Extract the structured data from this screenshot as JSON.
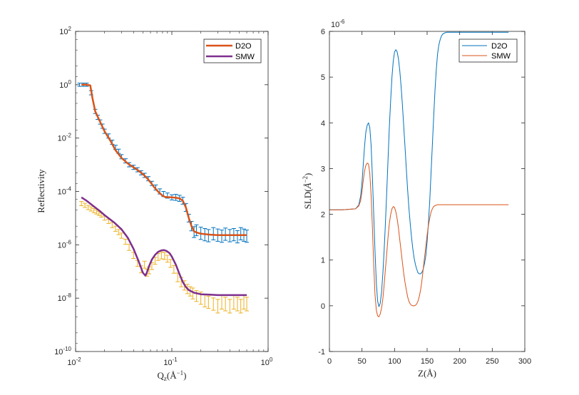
{
  "figure": {
    "window_title": ""
  },
  "chart_data": [
    {
      "type": "scatter",
      "title": "",
      "xlabel": "Q_z(Å^-1)",
      "xlabel_main": "Q",
      "xlabel_sub": "z",
      "xlabel_unit": "(Å",
      "xlabel_sup": "−1",
      "xlabel_close": ")",
      "ylabel": "Reflectivity",
      "xscale": "log",
      "yscale": "log",
      "xlim": [
        0.01,
        1
      ],
      "ylim": [
        1e-10,
        100
      ],
      "xtick_labels": [
        "10",
        "10",
        "10"
      ],
      "xtick_exponents": [
        "-2",
        "-1",
        "0"
      ],
      "ytick_labels": [
        "10",
        "10",
        "10",
        "10",
        "10",
        "10",
        "10"
      ],
      "ytick_exponents": [
        "2",
        "0",
        "-2",
        "-4",
        "-6",
        "-8",
        "-10"
      ],
      "legend_position": "top-right",
      "legend": [
        "D2O",
        "SMW"
      ],
      "colors": {
        "d2o_fit": "#D95319",
        "smw_fit": "#7E2F8E",
        "d2o_data": "#0072BD",
        "smw_data": "#EDB120"
      },
      "series": [
        {
          "name": "D2O",
          "kind": "fit",
          "x": [
            0.0115,
            0.013,
            0.0142,
            0.015,
            0.016,
            0.018,
            0.02,
            0.023,
            0.026,
            0.03,
            0.035,
            0.04,
            0.045,
            0.05,
            0.055,
            0.06,
            0.065,
            0.07,
            0.075,
            0.08,
            0.085,
            0.09,
            0.1,
            0.11,
            0.12,
            0.13,
            0.14,
            0.15,
            0.16,
            0.17,
            0.18,
            0.2,
            0.22,
            0.25,
            0.3,
            0.35,
            0.4,
            0.45,
            0.5,
            0.55,
            0.6
          ],
          "y": [
            1.0,
            1.0,
            0.95,
            0.3,
            0.1,
            0.04,
            0.018,
            0.008,
            0.0035,
            0.0018,
            0.0011,
            0.0008,
            0.0006,
            0.00045,
            0.00032,
            0.00022,
            0.00015,
            0.00011,
            8.5e-05,
            7e-05,
            6.2e-05,
            6.1e-05,
            6e-05,
            5.8e-05,
            5.5e-05,
            4.5e-05,
            2.5e-05,
            1e-05,
            5e-06,
            3.2e-06,
            2.9e-06,
            2.6e-06,
            2.5e-06,
            2.4e-06,
            2.3e-06,
            2.3e-06,
            2.3e-06,
            2.3e-06,
            2.3e-06,
            2.3e-06,
            2.3e-06
          ]
        },
        {
          "name": "SMW",
          "kind": "fit",
          "x": [
            0.0115,
            0.013,
            0.015,
            0.018,
            0.02,
            0.025,
            0.03,
            0.035,
            0.04,
            0.045,
            0.05,
            0.053,
            0.055,
            0.058,
            0.062,
            0.067,
            0.072,
            0.078,
            0.083,
            0.088,
            0.095,
            0.1,
            0.11,
            0.12,
            0.13,
            0.14,
            0.15,
            0.17,
            0.2,
            0.25,
            0.3,
            0.4,
            0.5,
            0.6
          ],
          "y": [
            6e-05,
            4.5e-05,
            3e-05,
            1.8e-05,
            1.3e-05,
            7e-06,
            3.8e-06,
            1.8e-06,
            7e-07,
            2.5e-07,
            9e-08,
            7e-08,
            9e-08,
            1.6e-07,
            2.8e-07,
            4.2e-07,
            5.4e-07,
            6.2e-07,
            6.3e-07,
            5.9e-07,
            4.8e-07,
            3.6e-07,
            1.8e-07,
            8e-08,
            4e-08,
            2.6e-08,
            2e-08,
            1.6e-08,
            1.4e-08,
            1.35e-08,
            1.3e-08,
            1.3e-08,
            1.3e-08,
            1.3e-08
          ]
        },
        {
          "name": "D2O data",
          "kind": "errorbar",
          "x": [
            0.011,
            0.012,
            0.013,
            0.0145,
            0.016,
            0.017,
            0.018,
            0.019,
            0.02,
            0.022,
            0.024,
            0.026,
            0.028,
            0.03,
            0.033,
            0.036,
            0.04,
            0.044,
            0.048,
            0.052,
            0.057,
            0.062,
            0.068,
            0.075,
            0.082,
            0.09,
            0.1,
            0.11,
            0.12,
            0.13,
            0.14,
            0.15,
            0.16,
            0.17,
            0.18,
            0.2,
            0.22,
            0.24,
            0.27,
            0.3,
            0.33,
            0.36,
            0.4,
            0.44,
            0.48,
            0.52,
            0.56,
            0.6
          ],
          "y": [
            1.0,
            1.0,
            1.0,
            0.5,
            0.1,
            0.06,
            0.04,
            0.028,
            0.018,
            0.012,
            0.007,
            0.0045,
            0.0032,
            0.002,
            0.0014,
            0.001,
            0.0008,
            0.00065,
            0.0005,
            0.0004,
            0.0003,
            0.0002,
            0.00014,
            0.0001,
            8e-05,
            7e-05,
            6e-05,
            6e-05,
            5.5e-05,
            4.5e-05,
            2.5e-05,
            1e-05,
            5e-06,
            3e-06,
            3.5e-06,
            2.7e-06,
            2.4e-06,
            2.2e-06,
            2.6e-06,
            2.3e-06,
            2.1e-06,
            2.5e-06,
            2.2e-06,
            2.4e-06,
            2e-06,
            2.6e-06,
            2.3e-06,
            2.1e-06
          ],
          "err_factor": [
            1.15,
            1.15,
            1.15,
            1.2,
            1.2,
            1.2,
            1.2,
            1.2,
            1.2,
            1.2,
            1.2,
            1.2,
            1.2,
            1.2,
            1.2,
            1.2,
            1.2,
            1.2,
            1.2,
            1.2,
            1.2,
            1.2,
            1.25,
            1.25,
            1.25,
            1.25,
            1.25,
            1.3,
            1.3,
            1.35,
            1.4,
            1.4,
            1.5,
            1.6,
            1.6,
            1.7,
            1.7,
            1.7,
            1.7,
            1.7,
            1.7,
            1.7,
            1.7,
            1.7,
            1.7,
            1.7,
            1.7,
            1.7
          ]
        },
        {
          "name": "SMW data",
          "kind": "errorbar",
          "x": [
            0.0115,
            0.0125,
            0.0135,
            0.0145,
            0.0155,
            0.0165,
            0.0175,
            0.0185,
            0.02,
            0.022,
            0.024,
            0.026,
            0.028,
            0.03,
            0.033,
            0.036,
            0.04,
            0.044,
            0.048,
            0.052,
            0.055,
            0.058,
            0.062,
            0.067,
            0.072,
            0.078,
            0.084,
            0.09,
            0.097,
            0.105,
            0.115,
            0.125,
            0.135,
            0.145,
            0.155,
            0.165,
            0.18,
            0.2,
            0.22,
            0.24,
            0.27,
            0.3,
            0.33,
            0.36,
            0.4,
            0.44,
            0.48,
            0.52,
            0.56,
            0.6
          ],
          "y": [
            3.5e-05,
            3e-05,
            2.5e-05,
            2.2e-05,
            1.9e-05,
            1.7e-05,
            1.5e-05,
            1.3e-05,
            1e-05,
            7.5e-06,
            5.5e-06,
            4e-06,
            3e-06,
            2.2e-06,
            1.3e-06,
            8e-07,
            4e-07,
            2e-07,
            1.2e-07,
            1.8e-07,
            9e-08,
            1.1e-07,
            1.6e-07,
            2.5e-07,
            3.5e-07,
            4e-07,
            3.8e-07,
            3e-07,
            2e-07,
            1.2e-07,
            6e-08,
            4e-08,
            3e-08,
            2.2e-08,
            1.8e-08,
            1.5e-08,
            1.2e-08,
            1e-08,
            8e-09,
            7e-09,
            6e-09,
            5e-09,
            7e-09,
            6e-09,
            5e-09,
            7e-09,
            6e-09,
            5e-09,
            7e-09,
            6e-09
          ],
          "err_factor": [
            1.2,
            1.2,
            1.2,
            1.2,
            1.2,
            1.2,
            1.2,
            1.2,
            1.2,
            1.2,
            1.25,
            1.25,
            1.25,
            1.25,
            1.25,
            1.3,
            1.3,
            1.3,
            1.35,
            1.35,
            1.35,
            1.35,
            1.35,
            1.35,
            1.35,
            1.35,
            1.35,
            1.35,
            1.4,
            1.4,
            1.45,
            1.5,
            1.5,
            1.5,
            1.5,
            1.6,
            1.6,
            1.7,
            1.7,
            1.7,
            1.7,
            1.8,
            1.8,
            1.8,
            1.8,
            1.8,
            1.8,
            1.8,
            1.8,
            1.8
          ]
        }
      ]
    },
    {
      "type": "line",
      "title": "",
      "xlabel": "Z(Å)",
      "ylabel": "SLD(Å^-2)",
      "ylabel_main": "SLD(",
      "ylabel_unit": "Å",
      "ylabel_sup": "−2",
      "ylabel_close": ")",
      "xlim": [
        0,
        300
      ],
      "ylim": [
        -1,
        6
      ],
      "y_exponent_label": "10",
      "y_exponent": "-6",
      "xtick_labels": [
        "0",
        "50",
        "100",
        "150",
        "200",
        "250",
        "300"
      ],
      "ytick_labels": [
        "-1",
        "0",
        "1",
        "2",
        "3",
        "4",
        "5",
        "6"
      ],
      "legend_position": "top-right",
      "legend": [
        "D2O",
        "SMW"
      ],
      "colors": {
        "D2O": "#0072BD",
        "SMW": "#D95319"
      },
      "series": [
        {
          "name": "D2O",
          "x": [
            0,
            20,
            40,
            45,
            48,
            50,
            52,
            54,
            56,
            58,
            60,
            62,
            64,
            66,
            68,
            70,
            72,
            74,
            76,
            78,
            80,
            82,
            84,
            86,
            88,
            90,
            92,
            94,
            96,
            98,
            100,
            102,
            104,
            106,
            108,
            110,
            112,
            114,
            116,
            118,
            120,
            122,
            124,
            126,
            128,
            130,
            132,
            134,
            136,
            138,
            140,
            142,
            144,
            146,
            148,
            150,
            152,
            154,
            156,
            158,
            160,
            162,
            164,
            166,
            168,
            170,
            172,
            174,
            176,
            178,
            180,
            182,
            185,
            190,
            200,
            220,
            250,
            275
          ],
          "y": [
            2.1,
            2.1,
            2.12,
            2.2,
            2.4,
            2.7,
            3.1,
            3.5,
            3.8,
            3.95,
            4.0,
            3.9,
            3.5,
            2.8,
            2.0,
            1.2,
            0.5,
            0.1,
            -0.02,
            0.05,
            0.3,
            0.7,
            1.2,
            1.8,
            2.5,
            3.2,
            3.9,
            4.5,
            5.0,
            5.35,
            5.55,
            5.6,
            5.55,
            5.4,
            5.15,
            4.8,
            4.4,
            3.95,
            3.5,
            3.0,
            2.55,
            2.15,
            1.8,
            1.5,
            1.25,
            1.05,
            0.9,
            0.8,
            0.72,
            0.7,
            0.7,
            0.73,
            0.8,
            0.92,
            1.1,
            1.4,
            1.8,
            2.3,
            2.9,
            3.5,
            4.1,
            4.7,
            5.15,
            5.5,
            5.7,
            5.82,
            5.9,
            5.94,
            5.96,
            5.97,
            5.98,
            5.98,
            5.98,
            5.98,
            5.98,
            5.98,
            5.98,
            5.98
          ]
        },
        {
          "name": "SMW",
          "x": [
            0,
            20,
            40,
            45,
            48,
            50,
            52,
            54,
            56,
            58,
            60,
            62,
            64,
            66,
            68,
            70,
            72,
            74,
            76,
            78,
            80,
            82,
            84,
            86,
            88,
            90,
            92,
            94,
            96,
            98,
            100,
            102,
            104,
            106,
            108,
            110,
            112,
            114,
            116,
            118,
            120,
            122,
            124,
            126,
            128,
            130,
            132,
            134,
            136,
            138,
            140,
            142,
            144,
            146,
            148,
            150,
            152,
            154,
            156,
            158,
            160,
            162,
            164,
            166,
            168,
            170,
            172,
            174,
            176,
            178,
            180,
            182,
            185,
            190,
            200,
            220,
            250,
            275
          ],
          "y": [
            2.1,
            2.1,
            2.12,
            2.18,
            2.3,
            2.5,
            2.75,
            2.95,
            3.07,
            3.12,
            3.1,
            2.9,
            2.4,
            1.7,
            0.9,
            0.25,
            -0.1,
            -0.22,
            -0.24,
            -0.18,
            -0.05,
            0.15,
            0.45,
            0.8,
            1.15,
            1.5,
            1.8,
            2.0,
            2.12,
            2.17,
            2.15,
            2.05,
            1.9,
            1.7,
            1.45,
            1.2,
            0.95,
            0.72,
            0.52,
            0.35,
            0.2,
            0.1,
            0.04,
            0.01,
            0.0,
            0.0,
            0.01,
            0.04,
            0.1,
            0.2,
            0.35,
            0.55,
            0.8,
            1.05,
            1.3,
            1.55,
            1.75,
            1.92,
            2.05,
            2.12,
            2.17,
            2.19,
            2.2,
            2.21,
            2.21,
            2.21,
            2.21,
            2.21,
            2.21,
            2.21,
            2.21,
            2.21,
            2.21,
            2.21,
            2.21,
            2.21,
            2.21,
            2.21
          ]
        }
      ]
    }
  ]
}
